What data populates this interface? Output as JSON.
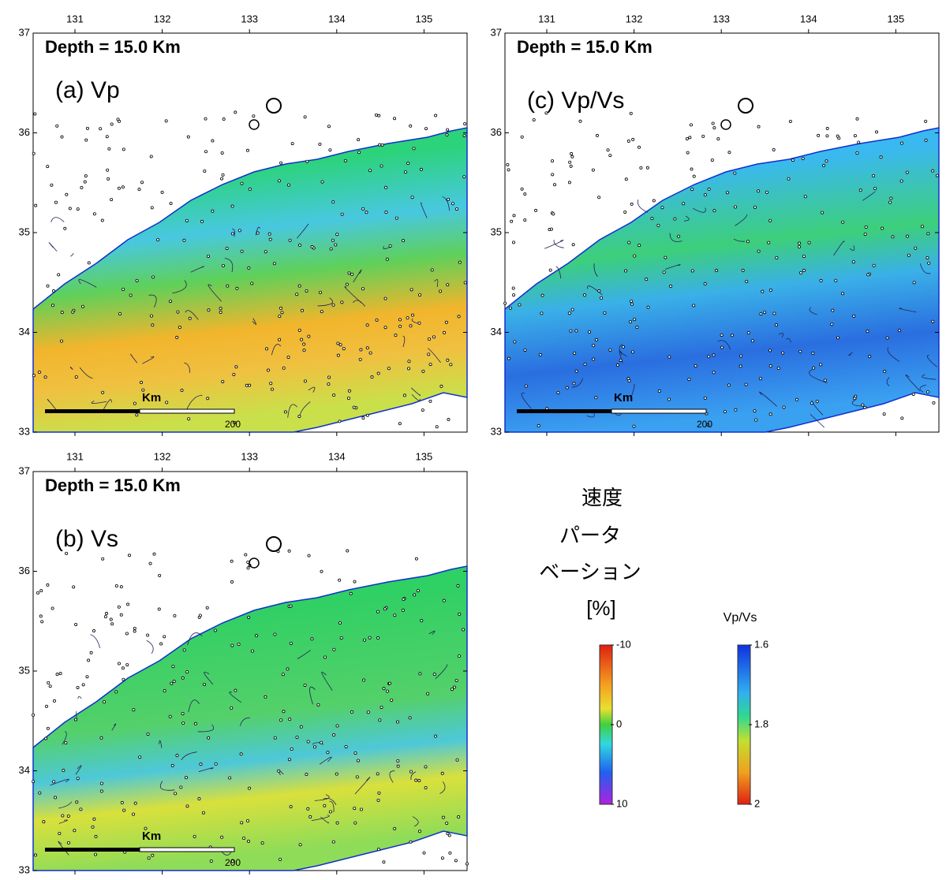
{
  "panels": [
    {
      "depth": "Depth = 15.0 Km",
      "label": "(a) Vp",
      "scale_unit": "Km",
      "scale_value": "200",
      "lon_ticks": [
        131,
        132,
        133,
        134,
        135
      ],
      "lat_ticks": [
        37,
        36,
        35,
        34,
        33
      ]
    },
    {
      "depth": "Depth = 15.0 Km",
      "label": "(b) Vs",
      "scale_unit": "Km",
      "scale_value": "200",
      "lon_ticks": [
        131,
        132,
        133,
        134,
        135
      ],
      "lat_ticks": [
        37,
        36,
        35,
        34,
        33
      ]
    },
    {
      "depth": "Depth = 15.0 Km",
      "label": "(c) Vp/Vs",
      "scale_unit": "Km",
      "scale_value": "200",
      "lon_ticks": [
        131,
        132,
        133,
        134,
        135
      ],
      "lat_ticks": [
        37,
        36,
        35,
        34,
        33
      ]
    }
  ],
  "velocity_legend": {
    "title_lines": [
      "速度",
      "パータ",
      "ベーション",
      "[%]"
    ],
    "ticks": [
      -10,
      0,
      10
    ]
  },
  "ratio_legend": {
    "title": "Vp/Vs",
    "ticks": [
      1.6,
      1.8,
      2
    ]
  }
}
